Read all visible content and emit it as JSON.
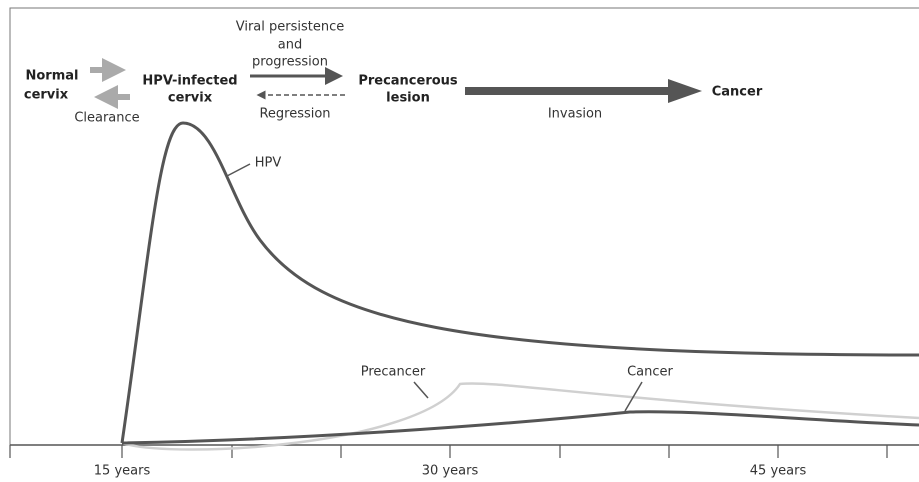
{
  "flow": {
    "nodes": [
      {
        "lines": [
          "Normal",
          "cervix"
        ]
      },
      {
        "lines": [
          "HPV-infected",
          "cervix"
        ]
      },
      {
        "lines": [
          "Precancerous",
          "lesion"
        ]
      },
      {
        "lines": [
          "Cancer"
        ]
      }
    ],
    "transitions": [
      {
        "lines": [
          "Viral persistence",
          "and",
          "progression"
        ]
      },
      {
        "label": "Clearance"
      },
      {
        "label": "Regression"
      },
      {
        "label": "Invasion"
      }
    ]
  },
  "curves": [
    {
      "label": "HPV"
    },
    {
      "label": "Precancer"
    },
    {
      "label": "Cancer"
    }
  ],
  "axis": {
    "ticks": [
      "15 years",
      "30 years",
      "45 years"
    ]
  }
}
